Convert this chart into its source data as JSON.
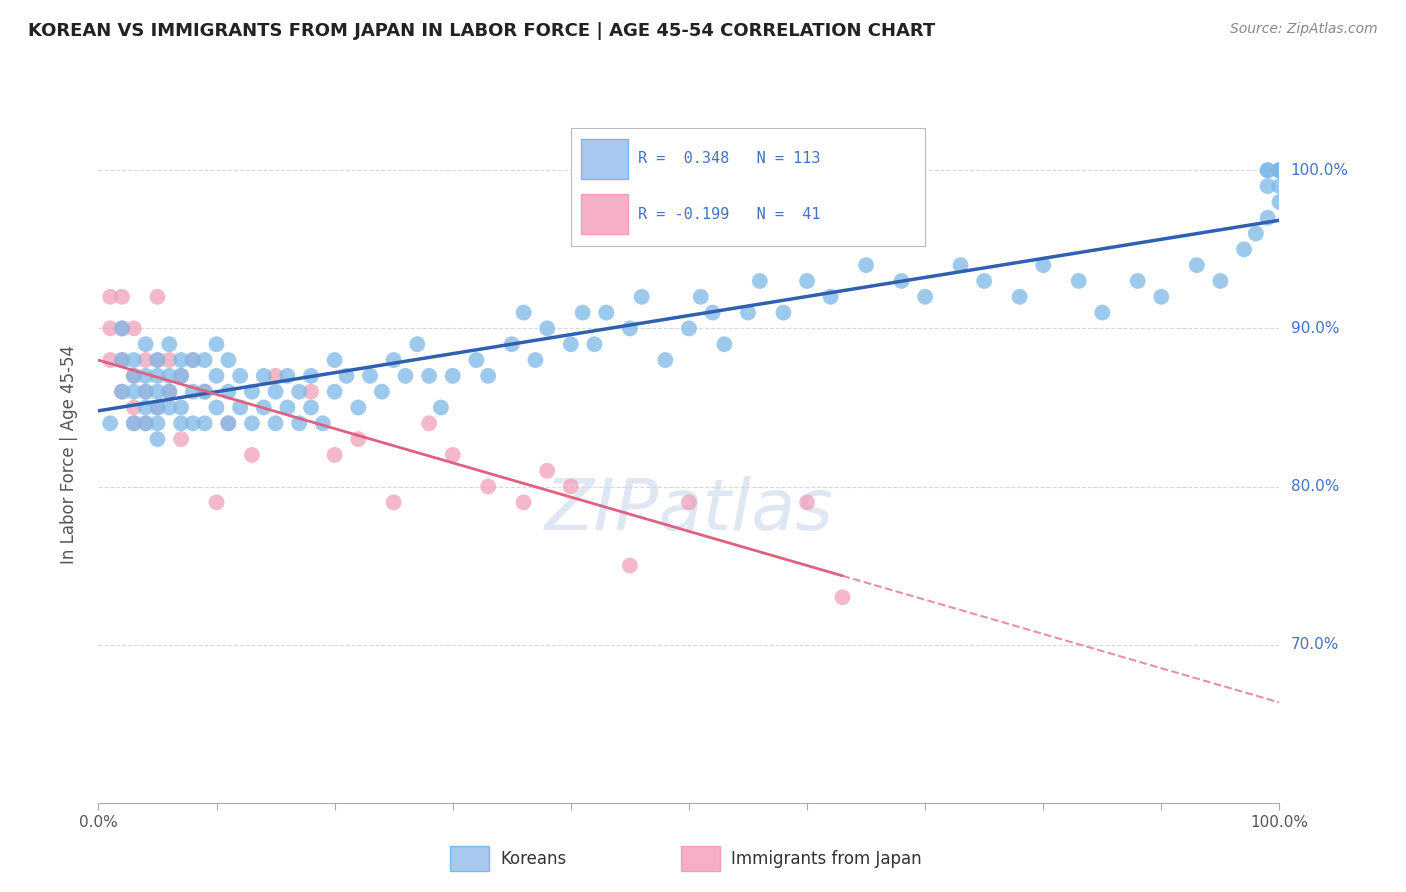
{
  "title": "KOREAN VS IMMIGRANTS FROM JAPAN IN LABOR FORCE | AGE 45-54 CORRELATION CHART",
  "source_text": "Source: ZipAtlas.com",
  "ylabel": "In Labor Force | Age 45-54",
  "xlim": [
    0.0,
    1.0
  ],
  "ylim": [
    0.6,
    1.04
  ],
  "x_tick_vals": [
    0.0,
    0.1,
    0.2,
    0.3,
    0.4,
    0.5,
    0.6,
    0.7,
    0.8,
    0.9,
    1.0
  ],
  "x_tick_labels": [
    "0.0%",
    "",
    "",
    "",
    "",
    "",
    "",
    "",
    "",
    "",
    "100.0%"
  ],
  "y_tick_vals_right": [
    0.7,
    0.8,
    0.9,
    1.0
  ],
  "y_tick_labels_right": [
    "70.0%",
    "80.0%",
    "90.0%",
    "100.0%"
  ],
  "legend_box_blue": "#a8c8f0",
  "legend_box_pink": "#f5b0c8",
  "korean_color": "#7db8e8",
  "japan_color": "#f0a0b8",
  "korean_line_color": "#3060b0",
  "japan_line_color": "#e06080",
  "R_korean": 0.348,
  "N_korean": 113,
  "R_japan": -0.199,
  "N_japan": 41,
  "legend_label_korean": "Koreans",
  "legend_label_japan": "Immigrants from Japan",
  "watermark": "ZIPatlas",
  "background_color": "#ffffff",
  "grid_color": "#d8d8d8",
  "korean_scatter_x": [
    0.01,
    0.02,
    0.02,
    0.02,
    0.03,
    0.03,
    0.03,
    0.03,
    0.04,
    0.04,
    0.04,
    0.04,
    0.04,
    0.05,
    0.05,
    0.05,
    0.05,
    0.05,
    0.05,
    0.06,
    0.06,
    0.06,
    0.06,
    0.07,
    0.07,
    0.07,
    0.07,
    0.08,
    0.08,
    0.08,
    0.09,
    0.09,
    0.09,
    0.1,
    0.1,
    0.1,
    0.11,
    0.11,
    0.11,
    0.12,
    0.12,
    0.13,
    0.13,
    0.14,
    0.14,
    0.15,
    0.15,
    0.16,
    0.16,
    0.17,
    0.17,
    0.18,
    0.18,
    0.19,
    0.2,
    0.2,
    0.21,
    0.22,
    0.23,
    0.24,
    0.25,
    0.26,
    0.27,
    0.28,
    0.29,
    0.3,
    0.32,
    0.33,
    0.35,
    0.36,
    0.37,
    0.38,
    0.4,
    0.41,
    0.42,
    0.43,
    0.45,
    0.46,
    0.48,
    0.5,
    0.51,
    0.52,
    0.53,
    0.55,
    0.56,
    0.58,
    0.6,
    0.62,
    0.65,
    0.68,
    0.7,
    0.73,
    0.75,
    0.78,
    0.8,
    0.83,
    0.85,
    0.88,
    0.9,
    0.93,
    0.95,
    0.97,
    0.98,
    0.99,
    0.99,
    0.99,
    0.99,
    1.0,
    1.0,
    1.0,
    1.0,
    1.0,
    1.0
  ],
  "korean_scatter_y": [
    0.84,
    0.86,
    0.9,
    0.88,
    0.84,
    0.86,
    0.88,
    0.87,
    0.85,
    0.87,
    0.89,
    0.86,
    0.84,
    0.84,
    0.86,
    0.88,
    0.87,
    0.85,
    0.83,
    0.85,
    0.87,
    0.89,
    0.86,
    0.85,
    0.87,
    0.84,
    0.88,
    0.84,
    0.86,
    0.88,
    0.86,
    0.84,
    0.88,
    0.85,
    0.87,
    0.89,
    0.84,
    0.86,
    0.88,
    0.85,
    0.87,
    0.84,
    0.86,
    0.85,
    0.87,
    0.84,
    0.86,
    0.85,
    0.87,
    0.84,
    0.86,
    0.85,
    0.87,
    0.84,
    0.86,
    0.88,
    0.87,
    0.85,
    0.87,
    0.86,
    0.88,
    0.87,
    0.89,
    0.87,
    0.85,
    0.87,
    0.88,
    0.87,
    0.89,
    0.91,
    0.88,
    0.9,
    0.89,
    0.91,
    0.89,
    0.91,
    0.9,
    0.92,
    0.88,
    0.9,
    0.92,
    0.91,
    0.89,
    0.91,
    0.93,
    0.91,
    0.93,
    0.92,
    0.94,
    0.93,
    0.92,
    0.94,
    0.93,
    0.92,
    0.94,
    0.93,
    0.91,
    0.93,
    0.92,
    0.94,
    0.93,
    0.95,
    0.96,
    0.97,
    0.99,
    1.0,
    1.0,
    0.98,
    0.99,
    1.0,
    1.0,
    1.0,
    1.0
  ],
  "japan_scatter_x": [
    0.01,
    0.01,
    0.01,
    0.02,
    0.02,
    0.02,
    0.02,
    0.03,
    0.03,
    0.03,
    0.03,
    0.04,
    0.04,
    0.04,
    0.05,
    0.05,
    0.05,
    0.06,
    0.06,
    0.07,
    0.07,
    0.08,
    0.09,
    0.1,
    0.11,
    0.13,
    0.15,
    0.18,
    0.2,
    0.22,
    0.25,
    0.28,
    0.3,
    0.33,
    0.36,
    0.38,
    0.4,
    0.45,
    0.5,
    0.6,
    0.63
  ],
  "japan_scatter_y": [
    0.92,
    0.9,
    0.88,
    0.86,
    0.9,
    0.88,
    0.92,
    0.84,
    0.87,
    0.9,
    0.85,
    0.86,
    0.88,
    0.84,
    0.92,
    0.85,
    0.88,
    0.88,
    0.86,
    0.87,
    0.83,
    0.88,
    0.86,
    0.79,
    0.84,
    0.82,
    0.87,
    0.86,
    0.82,
    0.83,
    0.79,
    0.84,
    0.82,
    0.8,
    0.79,
    0.81,
    0.8,
    0.75,
    0.79,
    0.79,
    0.73
  ]
}
